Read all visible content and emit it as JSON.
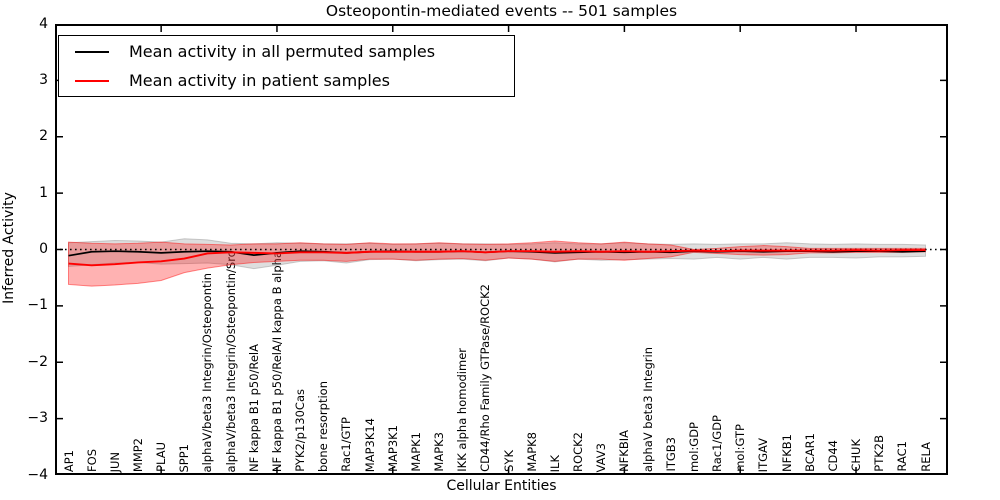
{
  "figure": {
    "title": "Osteopontin-mediated events -- 501 samples",
    "xlabel": "Cellular Entities",
    "ylabel": "Inferred Activity"
  },
  "legend": {
    "items": [
      {
        "label": "Mean activity in all permuted samples",
        "color": "#000000"
      },
      {
        "label": "Mean activity in patient samples",
        "color": "#ff0000"
      }
    ]
  },
  "chart_data": {
    "type": "line",
    "title": "Osteopontin-mediated events -- 501 samples",
    "xlabel": "Cellular Entities",
    "ylabel": "Inferred Activity",
    "ylim": [
      -4,
      4
    ],
    "yticks": [
      4,
      3,
      2,
      1,
      0,
      -1,
      -2,
      -3,
      -4
    ],
    "grid": false,
    "legend_position": "upper left",
    "zero_reference_line": {
      "y": 0,
      "style": "dotted",
      "color": "#000000"
    },
    "categories": [
      "AP1",
      "FOS",
      "JUN",
      "MMP2",
      "PLAU",
      "SPP1",
      "alphaV/beta3 Integrin/Osteopontin",
      "alphaV/beta3 Integrin/Osteopontin/Src",
      "NF kappa B1 p50/RelA",
      "NF kappa B1 p50/RelA/I kappa B alpha",
      "PYK2/p130Cas",
      "bone resorption",
      "Rac1/GTP",
      "MAP3K14",
      "MAP3K1",
      "MAPK1",
      "MAPK3",
      "IKK alpha homodimer",
      "CD44/Rho Family GTPase/ROCK2",
      "SYK",
      "MAPK8",
      "ILK",
      "ROCK2",
      "VAV3",
      "NFKBIA",
      "alphaV beta3 Integrin",
      "ITGB3",
      "mol:GDP",
      "Rac1/GDP",
      "mol:GTP",
      "ITGAV",
      "NFKB1",
      "BCAR1",
      "CD44",
      "CHUK",
      "PTK2B",
      "RAC1",
      "RELA"
    ],
    "series": [
      {
        "name": "Mean activity in all permuted samples",
        "color": "#000000",
        "band_fill": "#8a8a8a",
        "band_opacity": 0.28,
        "values": [
          -0.11,
          -0.04,
          -0.03,
          -0.04,
          -0.06,
          -0.04,
          -0.03,
          -0.04,
          -0.1,
          -0.06,
          -0.03,
          -0.04,
          -0.06,
          -0.04,
          -0.03,
          -0.04,
          -0.04,
          -0.03,
          -0.05,
          -0.03,
          -0.04,
          -0.06,
          -0.05,
          -0.04,
          -0.05,
          -0.04,
          -0.05,
          -0.03,
          -0.04,
          -0.03,
          -0.04,
          -0.03,
          -0.03,
          -0.04,
          -0.03,
          -0.03,
          -0.04,
          -0.03
        ],
        "band_upper": [
          0.12,
          0.14,
          0.16,
          0.15,
          0.13,
          0.19,
          0.17,
          0.11,
          0.1,
          0.12,
          0.11,
          0.1,
          0.1,
          0.11,
          0.09,
          0.1,
          0.11,
          0.1,
          0.1,
          0.09,
          0.1,
          0.12,
          0.1,
          0.1,
          0.12,
          0.1,
          0.09,
          0.1,
          0.09,
          0.1,
          0.1,
          0.12,
          0.1,
          0.09,
          0.1,
          0.09,
          0.09,
          0.08
        ],
        "band_lower": [
          -0.3,
          -0.27,
          -0.24,
          -0.23,
          -0.26,
          -0.25,
          -0.24,
          -0.27,
          -0.34,
          -0.28,
          -0.21,
          -0.2,
          -0.24,
          -0.18,
          -0.17,
          -0.2,
          -0.18,
          -0.17,
          -0.2,
          -0.15,
          -0.17,
          -0.22,
          -0.17,
          -0.19,
          -0.18,
          -0.17,
          -0.16,
          -0.17,
          -0.14,
          -0.17,
          -0.14,
          -0.17,
          -0.14,
          -0.14,
          -0.15,
          -0.13,
          -0.13,
          -0.12
        ]
      },
      {
        "name": "Mean activity in patient samples",
        "color": "#ff0000",
        "band_fill": "#ff0000",
        "band_opacity": 0.3,
        "values": [
          -0.25,
          -0.28,
          -0.26,
          -0.23,
          -0.21,
          -0.16,
          -0.07,
          -0.05,
          -0.06,
          -0.07,
          -0.05,
          -0.05,
          -0.06,
          -0.04,
          -0.04,
          -0.04,
          -0.04,
          -0.03,
          -0.05,
          -0.03,
          -0.03,
          -0.04,
          -0.03,
          -0.04,
          -0.03,
          -0.04,
          -0.03,
          -0.02,
          -0.03,
          -0.02,
          -0.02,
          -0.02,
          -0.02,
          -0.02,
          -0.01,
          -0.02,
          -0.01,
          -0.01
        ],
        "band_upper": [
          0.13,
          0.11,
          0.1,
          0.11,
          0.13,
          0.1,
          0.09,
          0.08,
          0.1,
          0.1,
          0.12,
          0.1,
          0.09,
          0.12,
          0.1,
          0.1,
          0.12,
          0.1,
          0.09,
          0.1,
          0.12,
          0.15,
          0.12,
          0.1,
          0.13,
          0.1,
          0.08,
          0.0,
          0.02,
          0.05,
          0.07,
          0.05,
          0.02,
          0.02,
          0.02,
          0.02,
          0.02,
          0.02
        ],
        "band_lower": [
          -0.62,
          -0.65,
          -0.63,
          -0.6,
          -0.55,
          -0.41,
          -0.33,
          -0.27,
          -0.23,
          -0.21,
          -0.19,
          -0.19,
          -0.21,
          -0.17,
          -0.17,
          -0.19,
          -0.17,
          -0.16,
          -0.19,
          -0.15,
          -0.17,
          -0.21,
          -0.17,
          -0.17,
          -0.19,
          -0.16,
          -0.13,
          -0.05,
          -0.07,
          -0.09,
          -0.1,
          -0.09,
          -0.06,
          -0.06,
          -0.05,
          -0.05,
          -0.05,
          -0.04
        ]
      }
    ],
    "xtick_mark_indices": [
      4,
      9,
      14,
      19,
      24,
      29,
      34
    ]
  }
}
